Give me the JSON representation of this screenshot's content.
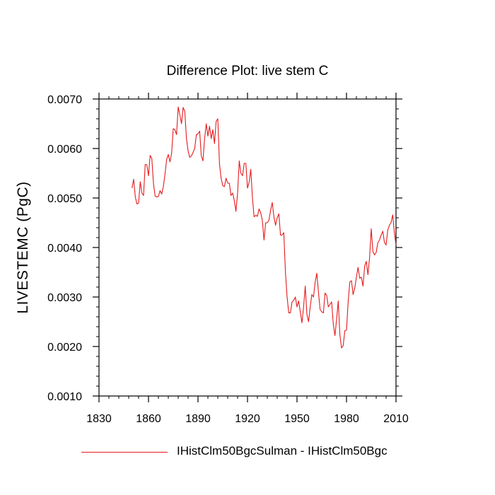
{
  "chart_data": {
    "type": "line",
    "title": "Difference Plot: live stem C",
    "xlabel": "",
    "ylabel": "LIVESTEMC  (PgC)",
    "xlim": [
      1830,
      2010
    ],
    "ylim": [
      0.001,
      0.007
    ],
    "x_ticks": [
      "1830",
      "1860",
      "1890",
      "1920",
      "1950",
      "1980",
      "2010"
    ],
    "y_ticks": [
      "0.0010",
      "0.0020",
      "0.0030",
      "0.0040",
      "0.0050",
      "0.0060",
      "0.0070"
    ],
    "grid": false,
    "legend_placement": "bottom",
    "series": [
      {
        "name": "IHistClm50BgcSulman - IHistClm50Bgc",
        "color": "#e41a1c",
        "x": [
          1850,
          1851,
          1852,
          1853,
          1854,
          1855,
          1856,
          1857,
          1858,
          1859,
          1860,
          1861,
          1862,
          1863,
          1864,
          1865,
          1866,
          1867,
          1868,
          1869,
          1870,
          1871,
          1872,
          1873,
          1874,
          1875,
          1876,
          1877,
          1878,
          1879,
          1880,
          1881,
          1882,
          1883,
          1884,
          1885,
          1886,
          1887,
          1888,
          1889,
          1890,
          1891,
          1892,
          1893,
          1894,
          1895,
          1896,
          1897,
          1898,
          1899,
          1900,
          1901,
          1902,
          1903,
          1904,
          1905,
          1906,
          1907,
          1908,
          1909,
          1910,
          1911,
          1912,
          1913,
          1914,
          1915,
          1916,
          1917,
          1918,
          1919,
          1920,
          1921,
          1922,
          1923,
          1924,
          1925,
          1926,
          1927,
          1928,
          1929,
          1930,
          1931,
          1932,
          1933,
          1934,
          1935,
          1936,
          1937,
          1938,
          1939,
          1940,
          1941,
          1942,
          1943,
          1944,
          1945,
          1946,
          1947,
          1948,
          1949,
          1950,
          1951,
          1952,
          1953,
          1954,
          1955,
          1956,
          1957,
          1958,
          1959,
          1960,
          1961,
          1962,
          1963,
          1964,
          1965,
          1966,
          1967,
          1968,
          1969,
          1970,
          1971,
          1972,
          1973,
          1974,
          1975,
          1976,
          1977,
          1978,
          1979,
          1980,
          1981,
          1982,
          1983,
          1984,
          1985,
          1986,
          1987,
          1988,
          1989,
          1990,
          1991,
          1992,
          1993,
          1994,
          1995,
          1996,
          1997,
          1998,
          1999,
          2000,
          2001,
          2002,
          2003,
          2004,
          2005,
          2006,
          2007,
          2008,
          2009,
          2010,
          2011
        ],
        "values": [
          0.0052,
          0.00538,
          0.00502,
          0.00488,
          0.0049,
          0.00533,
          0.0051,
          0.00505,
          0.00568,
          0.00567,
          0.00545,
          0.00586,
          0.0058,
          0.0053,
          0.00504,
          0.00502,
          0.00503,
          0.00515,
          0.00508,
          0.00523,
          0.00548,
          0.00578,
          0.00588,
          0.00573,
          0.0059,
          0.0064,
          0.00638,
          0.00628,
          0.00684,
          0.00668,
          0.0065,
          0.00683,
          0.00675,
          0.0062,
          0.00595,
          0.00582,
          0.00585,
          0.00592,
          0.006,
          0.00628,
          0.0063,
          0.00635,
          0.00585,
          0.00575,
          0.0062,
          0.0065,
          0.00625,
          0.00645,
          0.0062,
          0.00638,
          0.0061,
          0.00655,
          0.0066,
          0.0057,
          0.0054,
          0.00525,
          0.00523,
          0.0054,
          0.0053,
          0.0053,
          0.00505,
          0.0051,
          0.00495,
          0.00473,
          0.0051,
          0.00575,
          0.0055,
          0.00545,
          0.0057,
          0.0057,
          0.0052,
          0.00532,
          0.00558,
          0.005,
          0.00462,
          0.00465,
          0.00463,
          0.00478,
          0.0047,
          0.00455,
          0.00415,
          0.0045,
          0.0045,
          0.00455,
          0.00475,
          0.00491,
          0.00462,
          0.00445,
          0.0046,
          0.00468,
          0.00425,
          0.00425,
          0.0043,
          0.0035,
          0.003,
          0.00268,
          0.00268,
          0.0029,
          0.00293,
          0.003,
          0.0028,
          0.00292,
          0.0027,
          0.00248,
          0.0028,
          0.00322,
          0.00265,
          0.0025,
          0.0028,
          0.00305,
          0.003,
          0.0033,
          0.00348,
          0.0031,
          0.00275,
          0.0027,
          0.00268,
          0.00308,
          0.00303,
          0.0028,
          0.00285,
          0.0029,
          0.00245,
          0.00222,
          0.00255,
          0.00292,
          0.00223,
          0.00197,
          0.00202,
          0.00232,
          0.00233,
          0.0029,
          0.0033,
          0.00333,
          0.00305,
          0.00318,
          0.0034,
          0.0036,
          0.00338,
          0.0034,
          0.00322,
          0.00362,
          0.00372,
          0.00345,
          0.0038,
          0.00438,
          0.00392,
          0.00385,
          0.0039,
          0.0041,
          0.00415,
          0.00425,
          0.00433,
          0.0041,
          0.00405,
          0.00435,
          0.00445,
          0.0045,
          0.00466,
          0.0043,
          0.00405,
          0.0041
        ]
      }
    ]
  }
}
